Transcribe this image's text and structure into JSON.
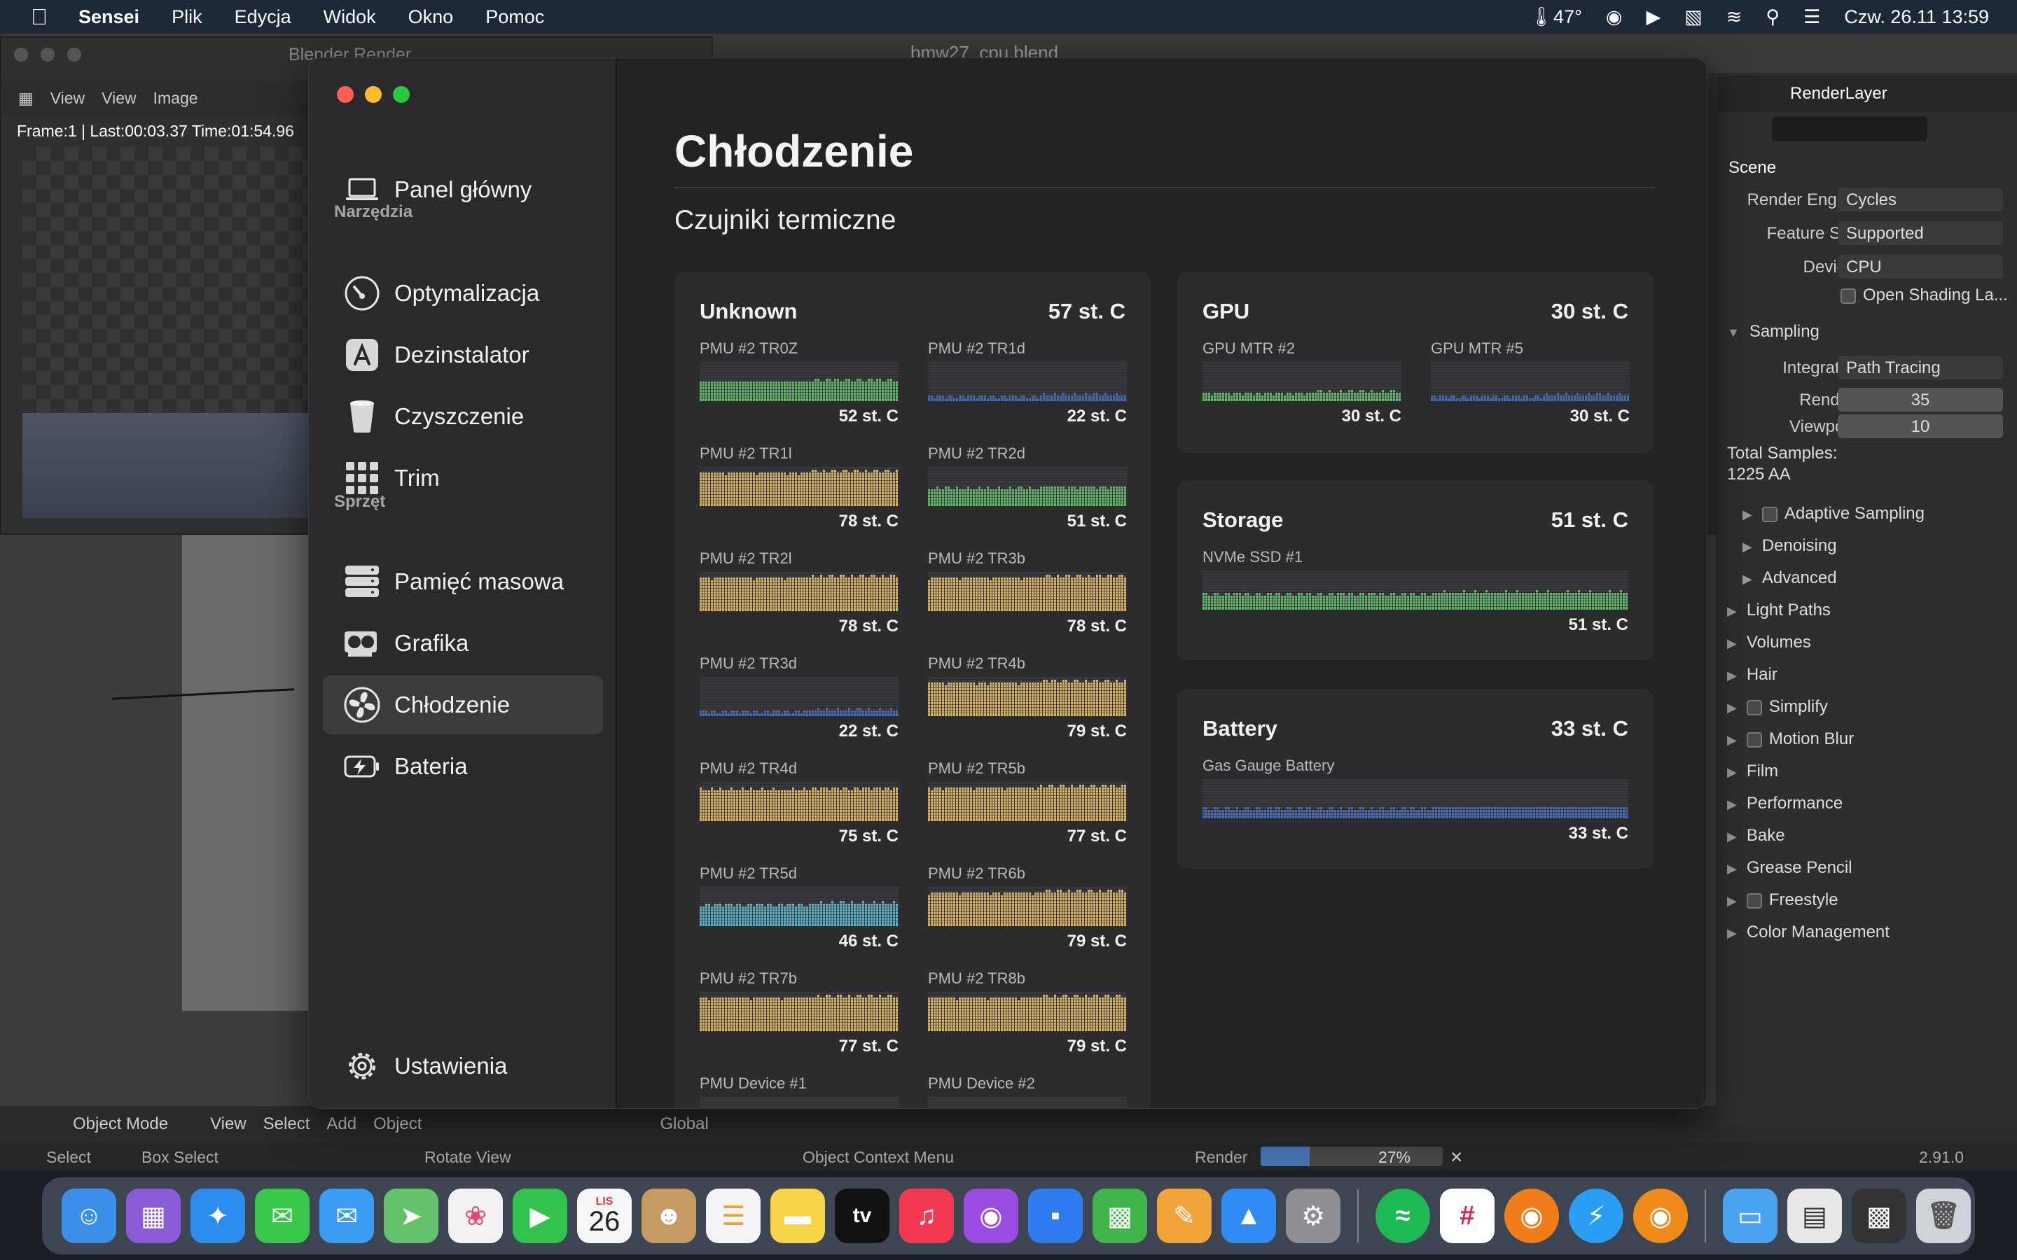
{
  "menubar": {
    "app": "Sensei",
    "items": [
      "Plik",
      "Edycja",
      "Widok",
      "Okno",
      "Pomoc"
    ],
    "temp": "47°",
    "datetime": "Czw. 26.11  13:59"
  },
  "blender": {
    "window_title": "bmw27_cpu.blend",
    "render_window_title": "Blender Render",
    "render_header": [
      "View",
      "View",
      "Image"
    ],
    "render_info": "Frame:1 | Last:00:03.37 Time:01:54.96",
    "props": {
      "render_layer": "RenderLayer",
      "scene": "Scene",
      "render_engine_label": "Render Engi...",
      "render_engine": "Cycles",
      "feature_set_label": "Feature Set",
      "feature_set": "Supported",
      "device_label": "Device",
      "device": "CPU",
      "open_shading": "Open Shading La...",
      "sampling": "Sampling",
      "integrator_label": "Integrator",
      "integrator": "Path Tracing",
      "render_label": "Render",
      "render_samples": "35",
      "viewport_label": "Viewport",
      "viewport_samples": "10",
      "total_samples_label": "Total Samples:",
      "total_samples": "1225 AA",
      "adaptive": "Adaptive Sampling",
      "denoising": "Denoising",
      "advanced": "Advanced",
      "sections": [
        "Light Paths",
        "Volumes",
        "Hair",
        "Simplify",
        "Motion Blur",
        "Film",
        "Performance",
        "Bake",
        "Grease Pencil",
        "Freestyle",
        "Color Management"
      ]
    },
    "footer_tools": [
      "Object Mode",
      "View",
      "Select",
      "Add",
      "Object",
      "Global"
    ],
    "status": {
      "select": "Select",
      "box_select": "Box Select",
      "rotate": "Rotate View",
      "context": "Object Context Menu",
      "render": "Render",
      "progress_label": "27%",
      "progress": 0.27,
      "version": "2.91.0"
    }
  },
  "sensei": {
    "nav": {
      "dashboard": "Panel główny",
      "tools_header": "Narzędzia",
      "optimize": "Optymalizacja",
      "uninstall": "Dezinstalator",
      "cleanup": "Czyszczenie",
      "trim": "Trim",
      "hardware_header": "Sprzęt",
      "storage": "Pamięć masowa",
      "graphics": "Grafika",
      "cooling": "Chłodzenie",
      "battery": "Bateria",
      "settings": "Ustawienia"
    },
    "title": "Chłodzenie",
    "subtitle": "Czujniki termiczne",
    "colors": {
      "green": "#3fd14a",
      "orange": "#f0b429",
      "blue": "#2f6fe0",
      "cyan": "#2fc3e6"
    },
    "cards": [
      {
        "name": "Unknown",
        "temp": "57 st. C",
        "sensors": [
          {
            "name": "PMU #2 TR0Z",
            "value": "52 st. C",
            "color": "green",
            "level": 0.5
          },
          {
            "name": "PMU #2 TR1d",
            "value": "22 st. C",
            "color": "blue",
            "level": 0.12
          },
          {
            "name": "PMU #2 TR1l",
            "value": "78 st. C",
            "color": "orange",
            "level": 0.85
          },
          {
            "name": "PMU #2 TR2d",
            "value": "51 st. C",
            "color": "green",
            "level": 0.45
          },
          {
            "name": "PMU #2 TR2l",
            "value": "78 st. C",
            "color": "orange",
            "level": 0.85
          },
          {
            "name": "PMU #2 TR3b",
            "value": "78 st. C",
            "color": "orange",
            "level": 0.85
          },
          {
            "name": "PMU #2 TR3d",
            "value": "22 st. C",
            "color": "blue",
            "level": 0.12
          },
          {
            "name": "PMU #2 TR4b",
            "value": "79 st. C",
            "color": "orange",
            "level": 0.85
          },
          {
            "name": "PMU #2 TR4d",
            "value": "75 st. C",
            "color": "orange",
            "level": 0.8
          },
          {
            "name": "PMU #2 TR5b",
            "value": "77 st. C",
            "color": "orange",
            "level": 0.85
          },
          {
            "name": "PMU #2 TR5d",
            "value": "46 st. C",
            "color": "cyan",
            "level": 0.55
          },
          {
            "name": "PMU #2 TR6b",
            "value": "79 st. C",
            "color": "orange",
            "level": 0.85
          },
          {
            "name": "PMU #2 TR7b",
            "value": "77 st. C",
            "color": "orange",
            "level": 0.85
          },
          {
            "name": "PMU #2 TR8b",
            "value": "79 st. C",
            "color": "orange",
            "level": 0.85
          },
          {
            "name": "PMU Device #1",
            "value": "",
            "color": "orange",
            "level": 0
          },
          {
            "name": "PMU Device #2",
            "value": "",
            "color": "orange",
            "level": 0
          }
        ]
      },
      {
        "name": "GPU",
        "temp": "30 st. C",
        "sensors": [
          {
            "name": "GPU MTR #2",
            "value": "30 st. C",
            "color": "green",
            "level": 0.2
          },
          {
            "name": "GPU MTR #5",
            "value": "30 st. C",
            "color": "blue",
            "level": 0.12
          }
        ]
      },
      {
        "name": "Storage",
        "temp": "51 st. C",
        "sensors": [
          {
            "name": "NVMe SSD #1",
            "value": "51 st. C",
            "color": "green",
            "level": 0.4
          }
        ]
      },
      {
        "name": "Battery",
        "temp": "33 st. C",
        "sensors": [
          {
            "name": "Gas Gauge Battery",
            "value": "33 st. C",
            "color": "blue",
            "level": 0.25
          }
        ]
      }
    ]
  },
  "dock": {
    "calendar_month": "LIS",
    "calendar_day": "26",
    "tv_label": "tv"
  }
}
